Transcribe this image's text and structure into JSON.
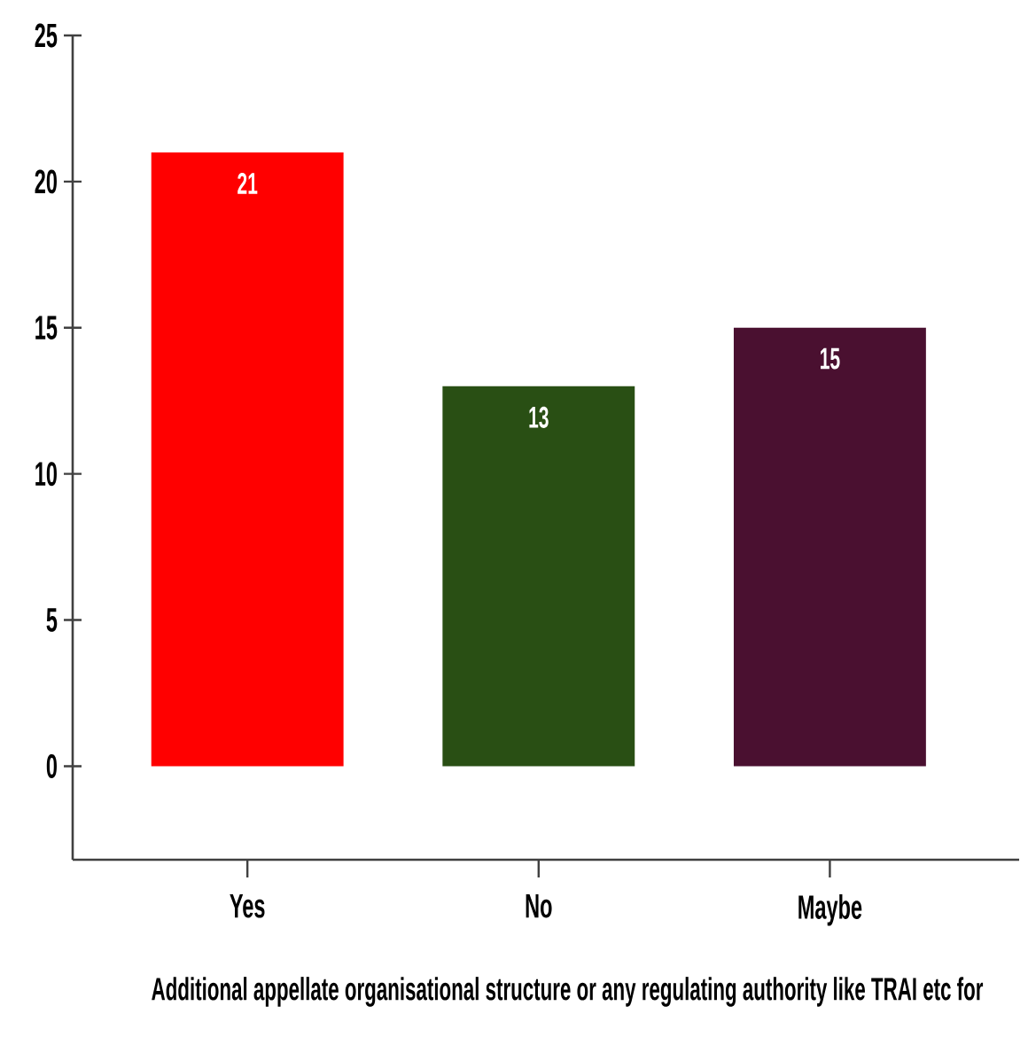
{
  "chart_data": {
    "type": "bar",
    "xlabel": "Additional appellate organisational structure or any regulating authority like TRAI etc for",
    "categories": [
      "Yes",
      "No",
      "Maybe"
    ],
    "values": [
      21,
      13,
      15
    ],
    "colors": [
      "#ff0000",
      "#294f14",
      "#4a1030"
    ],
    "ylim": [
      -3.2,
      25
    ],
    "yticks": [
      0,
      5,
      10,
      15,
      20,
      25
    ],
    "data_labels": true
  }
}
